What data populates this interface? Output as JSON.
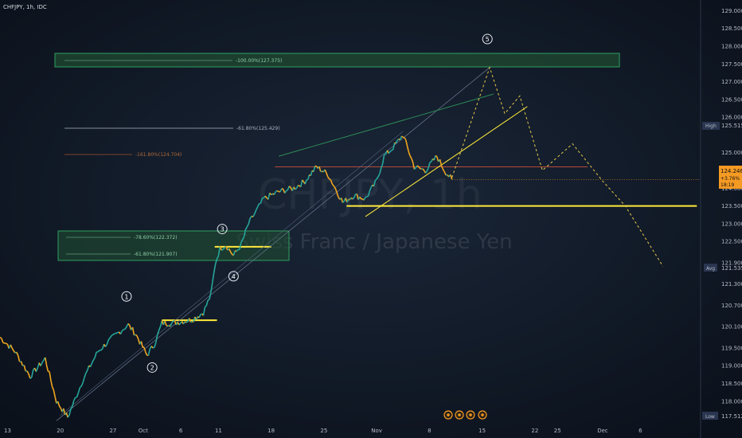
{
  "header": {
    "symbol": "CHFJPY, 1h, IDC"
  },
  "watermark": {
    "symbol": "CHFJPY, 1h",
    "name": "Swiss Franc / Japanese Yen"
  },
  "colors": {
    "background": "#0e1622",
    "candle_up": "#26a69a",
    "candle_down": "#f0a51e",
    "yellow_level": "#ffeb3b",
    "green_channel": "#2e8b57",
    "red_level": "#b84a3a",
    "projection": "#e6c84a",
    "fib_box_fill": "#1f4d32",
    "fib_box_border": "#2fa05f",
    "current_price": "#f59a23",
    "axis_badge": "#2a3550"
  },
  "fib_labels": {
    "target": "-100.00%(127.375)",
    "f618_upper": "-61.80%(125.429)",
    "f1618": "-161.80%(124.704)",
    "f786": "-78.60%(122.372)",
    "f618_lower": "-61.80%(121.907)"
  },
  "wave_labels": [
    "1",
    "2",
    "3",
    "4",
    "5"
  ],
  "price_axis": {
    "high_label": "High",
    "high_value": "125.515",
    "current_value": "124.246",
    "current_change": "+3.76%",
    "current_countdown": "18:19",
    "avg_label": "Avg",
    "avg_value": "121.535",
    "low_label": "Low",
    "low_value": "117.512"
  },
  "event_icons": [
    "event-icon",
    "event-icon",
    "event-icon",
    "event-icon"
  ],
  "chart_data": {
    "type": "line",
    "title": "CHFJPY, 1h, IDC",
    "yticks": [
      "129.000",
      "128.500",
      "128.000",
      "127.500",
      "127.000",
      "126.500",
      "126.000",
      "125.000",
      "124.500",
      "124.000",
      "123.500",
      "123.000",
      "122.500",
      "121.900",
      "121.300",
      "120.700",
      "120.100",
      "119.500",
      "119.000",
      "118.500",
      "118.000"
    ],
    "ytick_values": [
      129.0,
      128.5,
      128.0,
      127.5,
      127.0,
      126.5,
      126.0,
      125.0,
      124.5,
      124.0,
      123.5,
      123.0,
      122.5,
      121.9,
      121.3,
      120.7,
      120.1,
      119.5,
      119.0,
      118.5,
      118.0
    ],
    "ylim": [
      117.3,
      129.3
    ],
    "xticks": [
      "13",
      "20",
      "27",
      "Oct",
      "6",
      "11",
      "18",
      "25",
      "Nov",
      "8",
      "15",
      "22",
      "25",
      "Dec",
      "6"
    ],
    "xtick_days": [
      -18,
      -11,
      -4,
      0,
      5,
      10,
      17,
      24,
      31,
      38,
      45,
      52,
      55,
      61,
      66
    ],
    "x_axis_note": "day offsets from Oct 1",
    "xlim": [
      -19,
      74
    ],
    "price_path": [
      [
        -19,
        119.8
      ],
      [
        -17,
        119.4
      ],
      [
        -15,
        118.7
      ],
      [
        -13,
        119.2
      ],
      [
        -11.5,
        118.0
      ],
      [
        -10,
        117.55
      ],
      [
        -8,
        118.6
      ],
      [
        -6,
        119.4
      ],
      [
        -4,
        119.8
      ],
      [
        -2,
        120.15
      ],
      [
        -1,
        119.9
      ],
      [
        0.5,
        119.3
      ],
      [
        1.5,
        119.6
      ],
      [
        2.5,
        120.2
      ],
      [
        4,
        120.2
      ],
      [
        6.5,
        120.3
      ],
      [
        8,
        120.5
      ],
      [
        9,
        121.0
      ],
      [
        9.6,
        121.9
      ],
      [
        10.2,
        122.3
      ],
      [
        11,
        122.4
      ],
      [
        12,
        122.1
      ],
      [
        13,
        122.4
      ],
      [
        14,
        123.0
      ],
      [
        16,
        123.7
      ],
      [
        18,
        123.9
      ],
      [
        20,
        124.0
      ],
      [
        21.5,
        124.2
      ],
      [
        23,
        124.6
      ],
      [
        24.5,
        124.4
      ],
      [
        25.5,
        124.0
      ],
      [
        26.5,
        123.6
      ],
      [
        28,
        123.8
      ],
      [
        29.5,
        123.7
      ],
      [
        31,
        124.2
      ],
      [
        32,
        124.9
      ],
      [
        33,
        125.1
      ],
      [
        34.5,
        125.5
      ],
      [
        36,
        124.6
      ],
      [
        37.5,
        124.5
      ],
      [
        39,
        124.9
      ],
      [
        40,
        124.5
      ],
      [
        41,
        124.246
      ]
    ],
    "projection_path": [
      [
        41,
        124.3
      ],
      [
        46,
        127.4
      ],
      [
        48,
        126.1
      ],
      [
        50,
        126.6
      ],
      [
        53,
        124.5
      ],
      [
        57,
        125.25
      ],
      [
        61,
        124.2
      ],
      [
        64,
        123.5
      ],
      [
        69,
        121.8
      ]
    ],
    "levels": {
      "fib_target": 127.375,
      "fib_618_upper": 125.429,
      "fib_1618": 124.704,
      "fib_786": 122.372,
      "fib_618_lower": 121.907,
      "support": 123.5,
      "resistance_red": 124.6,
      "high": 125.515,
      "avg": 121.535,
      "low": 117.512,
      "current": 124.246
    }
  }
}
